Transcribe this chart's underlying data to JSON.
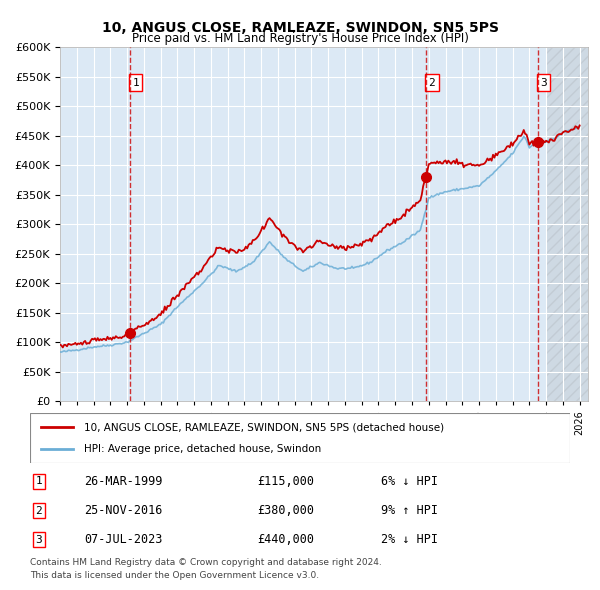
{
  "title": "10, ANGUS CLOSE, RAMLEAZE, SWINDON, SN5 5PS",
  "subtitle": "Price paid vs. HM Land Registry's House Price Index (HPI)",
  "legend_line1": "10, ANGUS CLOSE, RAMLEAZE, SWINDON, SN5 5PS (detached house)",
  "legend_line2": "HPI: Average price, detached house, Swindon",
  "transactions": [
    {
      "num": 1,
      "date": "26-MAR-1999",
      "price": 115000,
      "pct": "6%",
      "dir": "↓"
    },
    {
      "num": 2,
      "date": "25-NOV-2016",
      "price": 380000,
      "pct": "9%",
      "dir": "↑"
    },
    {
      "num": 3,
      "date": "07-JUL-2023",
      "price": 440000,
      "pct": "2%",
      "dir": "↓"
    }
  ],
  "footer1": "Contains HM Land Registry data © Crown copyright and database right 2024.",
  "footer2": "This data is licensed under the Open Government Licence v3.0.",
  "hpi_color": "#6baed6",
  "price_color": "#cc0000",
  "marker_color": "#cc0000",
  "vline_color": "#cc0000",
  "bg_color": "#dce9f5",
  "hatch_color": "#b0c4d8",
  "ylim": [
    0,
    600000
  ],
  "yticks": [
    0,
    50000,
    100000,
    150000,
    200000,
    250000,
    300000,
    350000,
    400000,
    450000,
    500000,
    550000,
    600000
  ]
}
